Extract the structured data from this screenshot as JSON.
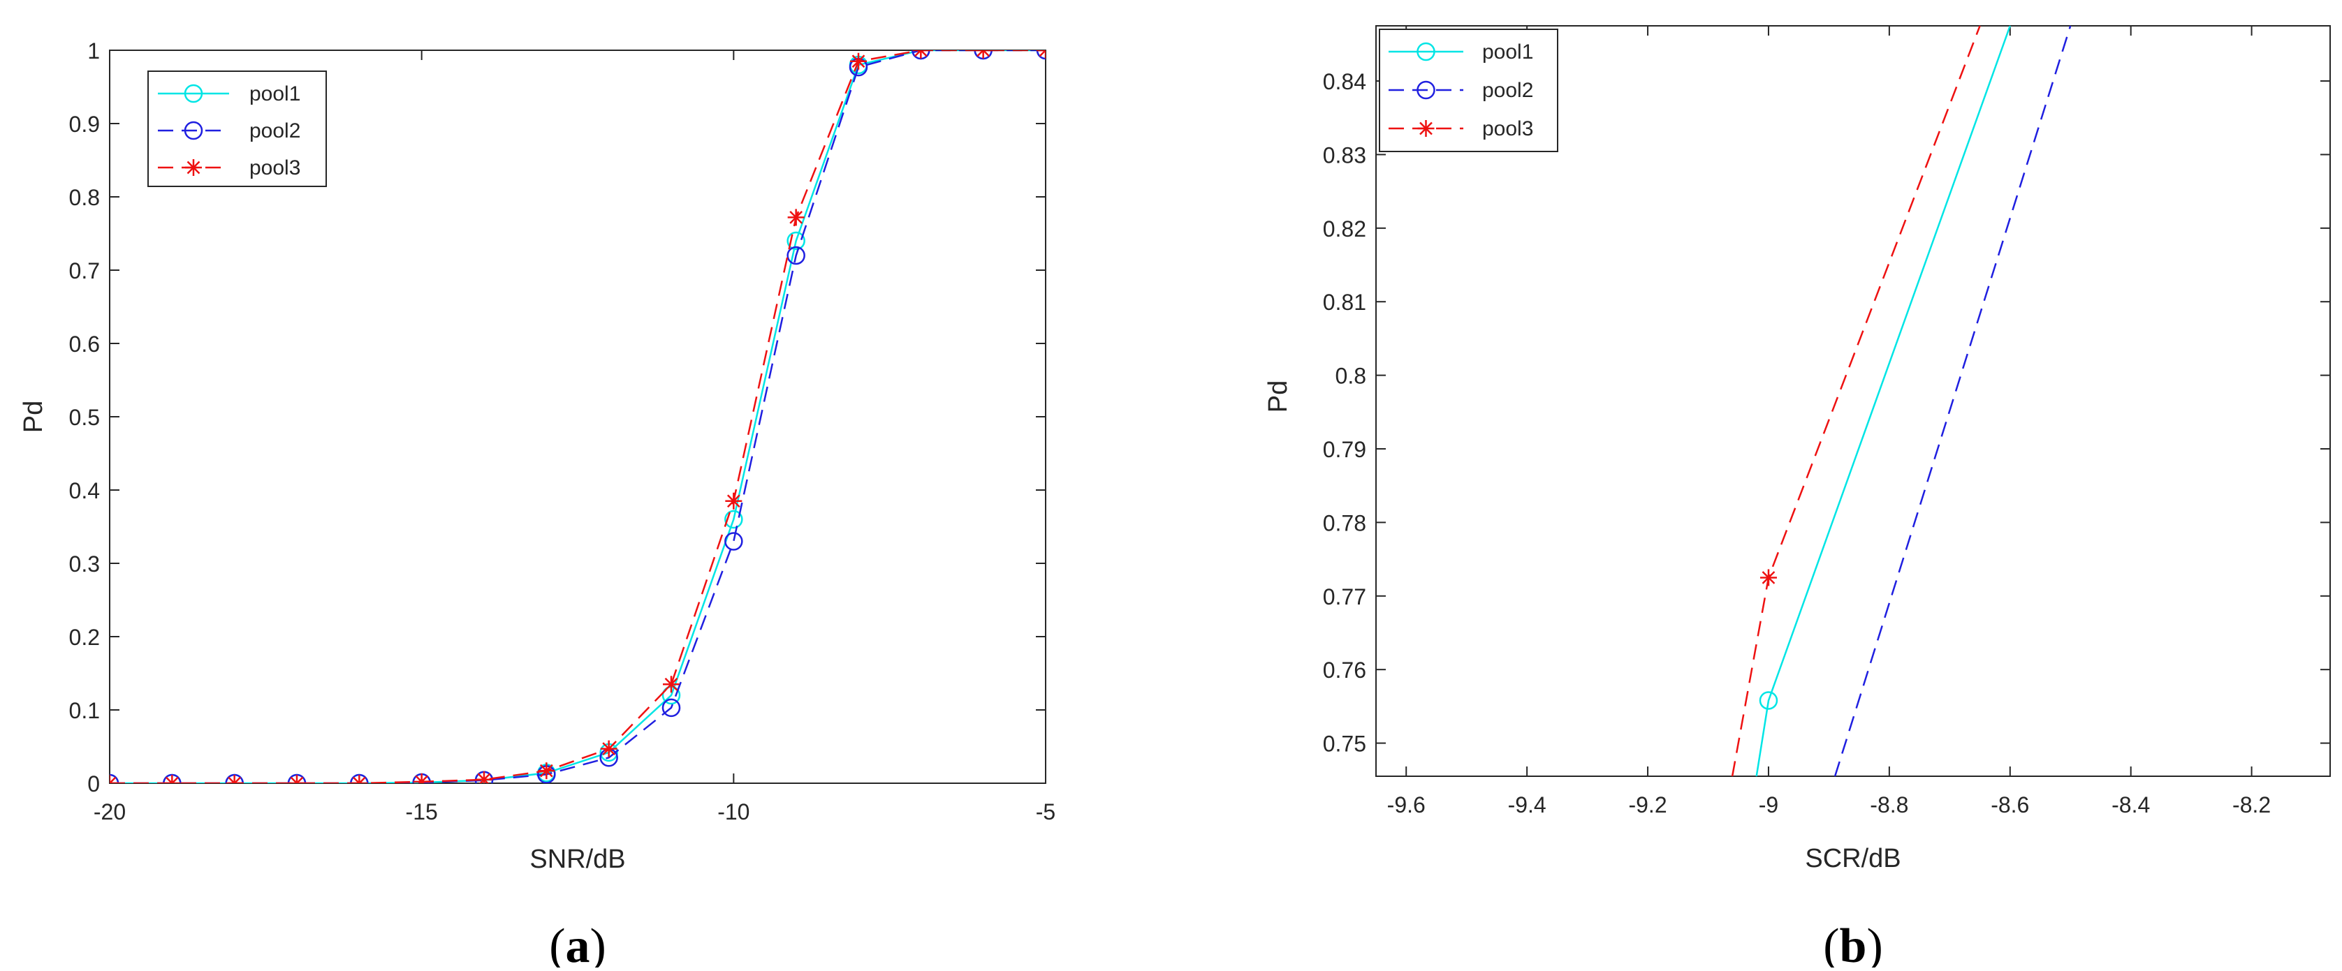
{
  "chart_data": [
    {
      "type": "line",
      "panel_label": "a",
      "xlabel": "SNR/dB",
      "ylabel": "Pd",
      "xlim": [
        -20,
        -5
      ],
      "ylim": [
        0,
        1
      ],
      "xticks": [
        -20,
        -15,
        -10,
        -5
      ],
      "xtick_labels": [
        "-20",
        "-15",
        "-10",
        "-5"
      ],
      "yticks": [
        0,
        0.1,
        0.2,
        0.3,
        0.4,
        0.5,
        0.6,
        0.7,
        0.8,
        0.9,
        1
      ],
      "ytick_labels": [
        "0",
        "0.1",
        "0.2",
        "0.3",
        "0.4",
        "0.5",
        "0.6",
        "0.7",
        "0.8",
        "0.9",
        "1"
      ],
      "grid": false,
      "legend_position": "top-left",
      "x": [
        -20,
        -19,
        -18,
        -17,
        -16,
        -15,
        -14,
        -13,
        -12,
        -11,
        -10,
        -9,
        -8,
        -7,
        -6,
        -5
      ],
      "series": [
        {
          "name": "pool1",
          "color": "#00e5e5",
          "dash": "solid",
          "marker": "circle",
          "values": [
            0,
            0,
            0,
            0,
            0,
            0.001,
            0.004,
            0.014,
            0.042,
            0.12,
            0.36,
            0.74,
            0.98,
            1,
            1,
            1
          ]
        },
        {
          "name": "pool2",
          "color": "#1f1fe0",
          "dash": "dashed",
          "marker": "circle",
          "values": [
            0,
            0,
            0,
            0,
            0,
            0.001,
            0.004,
            0.012,
            0.035,
            0.103,
            0.33,
            0.72,
            0.977,
            1,
            1,
            1
          ]
        },
        {
          "name": "pool3",
          "color": "#ee1111",
          "dash": "dashed",
          "marker": "asterisk",
          "values": [
            0,
            0,
            0,
            0,
            0,
            0.002,
            0.005,
            0.017,
            0.047,
            0.135,
            0.385,
            0.772,
            0.985,
            1,
            1,
            1
          ]
        }
      ]
    },
    {
      "type": "line",
      "panel_label": "b",
      "xlabel": "SCR/dB",
      "ylabel": "Pd",
      "xlim": [
        -9.65,
        -8.07
      ],
      "ylim": [
        0.7455,
        0.8475
      ],
      "xticks": [
        -9.6,
        -9.4,
        -9.2,
        -9,
        -8.8,
        -8.6,
        -8.4,
        -8.2
      ],
      "xtick_labels": [
        "-9.6",
        "-9.4",
        "-9.2",
        "-9",
        "-8.8",
        "-8.6",
        "-8.4",
        "-8.2"
      ],
      "yticks": [
        0.75,
        0.76,
        0.77,
        0.78,
        0.79,
        0.8,
        0.81,
        0.82,
        0.83,
        0.84
      ],
      "ytick_labels": [
        "0.75",
        "0.76",
        "0.77",
        "0.78",
        "0.79",
        "0.8",
        "0.81",
        "0.82",
        "0.83",
        "0.84"
      ],
      "grid": false,
      "legend_position": "top-left",
      "series": [
        {
          "name": "pool1",
          "color": "#00e5e5",
          "dash": "solid",
          "marker": "circle",
          "points": [
            [
              -9.02,
              0.7455
            ],
            [
              -9.0,
              0.7558
            ],
            [
              -8.6,
              0.8475
            ]
          ],
          "marker_points": [
            [
              -9.0,
              0.7558
            ]
          ]
        },
        {
          "name": "pool2",
          "color": "#1f1fe0",
          "dash": "dashed",
          "marker": "circle",
          "points": [
            [
              -8.89,
              0.7455
            ],
            [
              -8.5,
              0.8475
            ]
          ],
          "marker_points": []
        },
        {
          "name": "pool3",
          "color": "#ee1111",
          "dash": "dashed",
          "marker": "asterisk",
          "points": [
            [
              -9.06,
              0.7455
            ],
            [
              -9.0,
              0.7725
            ],
            [
              -8.65,
              0.8475
            ]
          ],
          "marker_points": [
            [
              -9.0,
              0.7725
            ]
          ]
        }
      ]
    }
  ]
}
